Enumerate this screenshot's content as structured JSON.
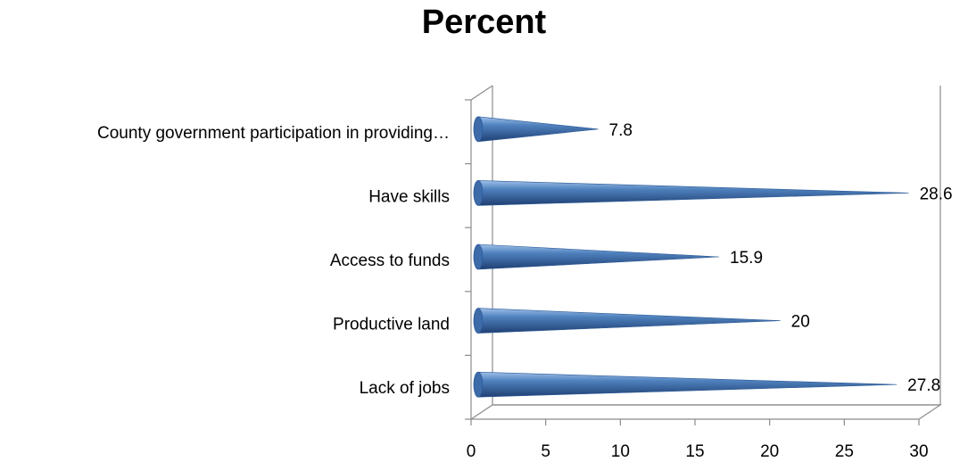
{
  "chart_data": {
    "type": "bar",
    "orientation": "horizontal",
    "style": "3d-cone",
    "title": "Percent",
    "categories": [
      "Lack of jobs",
      "Productive land",
      "Access to funds",
      "Have skills",
      "County government participation in providing…"
    ],
    "values": [
      27.8,
      20,
      15.9,
      28.6,
      7.8
    ],
    "data_labels": [
      "27.8",
      "20",
      "15.9",
      "28.6",
      "7.8"
    ],
    "xlim": [
      0,
      30
    ],
    "xticks": [
      0,
      5,
      10,
      15,
      20,
      25,
      30
    ],
    "xtick_labels": [
      "0",
      "5",
      "10",
      "15",
      "20",
      "25",
      "30"
    ],
    "grid": false,
    "legend": "none",
    "colors": {
      "bar_light": "#9fc0ea",
      "bar_mid": "#4f81bd",
      "bar_dark": "#1f3f73",
      "axis": "#8c8c8c"
    }
  }
}
